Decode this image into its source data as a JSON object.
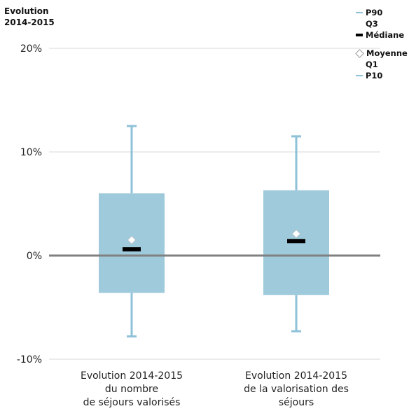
{
  "y_axis_title_line1": "Evolution",
  "y_axis_title_line2": "2014-2015",
  "legend": {
    "p90": "P90",
    "q3": "Q3",
    "mediane": "Médiane",
    "moyenne": "Moyenne",
    "q1": "Q1",
    "p10": "P10"
  },
  "colors": {
    "box": "#9ecadb",
    "whisker": "#8fc1d8",
    "median": "#000000",
    "mean": "#ffffff",
    "zero_line": "#808080",
    "grid": "#d9d9d9"
  },
  "chart_data": {
    "type": "box",
    "ylim": [
      -10,
      20
    ],
    "yticks": [
      {
        "value": 20,
        "label": "20%"
      },
      {
        "value": 10,
        "label": "10%"
      },
      {
        "value": 0,
        "label": "0%"
      },
      {
        "value": -10,
        "label": "-10%"
      }
    ],
    "grid": true,
    "legend_position": "top-right",
    "boxes": [
      {
        "category_lines": [
          "Evolution 2014-2015",
          "du nombre",
          "de séjours valorisés"
        ],
        "p10": -7.8,
        "q1": -3.6,
        "median": 0.6,
        "mean": 1.5,
        "q3": 6.0,
        "p90": 12.5
      },
      {
        "category_lines": [
          "Evolution 2014-2015",
          "de la valorisation des",
          "séjours"
        ],
        "p10": -7.3,
        "q1": -3.8,
        "median": 1.4,
        "mean": 2.1,
        "q3": 6.3,
        "p90": 11.5
      }
    ]
  }
}
